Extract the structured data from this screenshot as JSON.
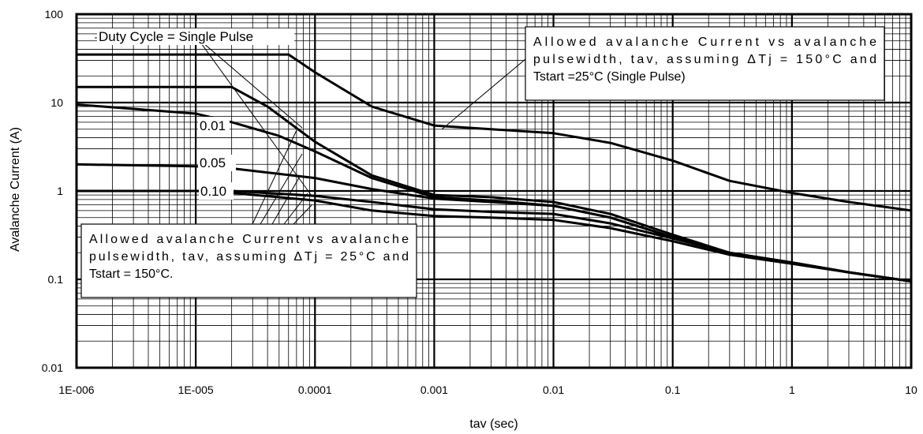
{
  "chart_data": {
    "type": "line",
    "title": "",
    "xlabel": "tav (sec)",
    "ylabel": "Avalanche Current (A)",
    "xscale": "log",
    "yscale": "log",
    "xlim": [
      1e-06,
      10
    ],
    "ylim": [
      0.01,
      100
    ],
    "grid": true,
    "x_ticks": [
      {
        "value": 1e-06,
        "label": "1E-006"
      },
      {
        "value": 1e-05,
        "label": "1E-005"
      },
      {
        "value": 0.0001,
        "label": "0.0001"
      },
      {
        "value": 0.001,
        "label": "0.001"
      },
      {
        "value": 0.01,
        "label": "0.01"
      },
      {
        "value": 0.1,
        "label": "0.1"
      },
      {
        "value": 1,
        "label": "1"
      },
      {
        "value": 10,
        "label": "10"
      }
    ],
    "y_ticks": [
      {
        "value": 0.01,
        "label": "0.01"
      },
      {
        "value": 0.1,
        "label": "0.1"
      },
      {
        "value": 1,
        "label": "1"
      },
      {
        "value": 10,
        "label": "10"
      },
      {
        "value": 100,
        "label": "100"
      }
    ],
    "series": [
      {
        "x": [
          1e-06,
          2e-05,
          6e-05,
          0.0001,
          0.0003,
          0.001,
          0.003,
          0.01,
          0.03,
          0.1,
          0.3,
          1,
          3,
          10
        ],
        "y": [
          35,
          35,
          35,
          22,
          9,
          5.5,
          5,
          4.5,
          3.5,
          2.2,
          1.3,
          0.95,
          0.75,
          0.6
        ]
      },
      {
        "x": [
          1e-06,
          2e-05,
          4e-05,
          0.0001,
          0.0003,
          0.001,
          0.003,
          0.01,
          0.03,
          0.1,
          0.3,
          1,
          3,
          10
        ],
        "y": [
          15,
          15,
          9,
          3.6,
          1.5,
          0.9,
          0.85,
          0.75,
          0.55,
          0.32,
          0.2,
          0.155,
          0.12,
          0.095
        ]
      },
      {
        "x": [
          1e-06,
          1e-05,
          2e-05,
          5e-05,
          0.0001,
          0.0003,
          0.001,
          0.003,
          0.01,
          0.03,
          0.1,
          0.3,
          1,
          3,
          10
        ],
        "y": [
          9.5,
          7.5,
          6,
          4.2,
          2.8,
          1.4,
          0.85,
          0.78,
          0.68,
          0.5,
          0.3,
          0.2,
          0.155,
          0.12,
          0.095
        ]
      },
      {
        "x": [
          1e-06,
          1e-05,
          2e-05,
          0.0001,
          0.0003,
          0.001,
          0.003,
          0.01,
          0.03,
          0.1,
          0.3,
          1,
          3,
          10
        ],
        "y": [
          2,
          1.9,
          1.8,
          1.4,
          1.05,
          0.82,
          0.75,
          0.68,
          0.5,
          0.3,
          0.2,
          0.155,
          0.12,
          0.095
        ]
      },
      {
        "x": [
          1e-06,
          1e-05,
          2e-05,
          0.0001,
          0.0003,
          0.001,
          0.003,
          0.01,
          0.03,
          0.1,
          0.3,
          1,
          3,
          10
        ],
        "y": [
          1,
          1,
          0.95,
          0.78,
          0.6,
          0.52,
          0.5,
          0.47,
          0.38,
          0.27,
          0.19,
          0.15,
          0.12,
          0.095
        ]
      },
      {
        "x": [
          1e-06,
          2e-05,
          0.0001,
          0.0003,
          0.001,
          0.003,
          0.01,
          0.03,
          0.1,
          0.3,
          1,
          3,
          10
        ],
        "y": [
          1,
          1,
          0.88,
          0.75,
          0.62,
          0.58,
          0.55,
          0.43,
          0.29,
          0.2,
          0.155,
          0.12,
          0.095
        ]
      }
    ],
    "annotations": [
      {
        "text": "Duty Cycle = Single Pulse"
      },
      {
        "text": "0.01"
      },
      {
        "text": "0.05"
      },
      {
        "text": "0.10"
      },
      {
        "lines": [
          "Allowed avalanche Current vs avalanche",
          "pulsewidth, tav, assuming ΔTj = 150°C and",
          "Tstart =25°C (Single Pulse)"
        ]
      },
      {
        "lines": [
          "Allowed avalanche Current vs avalanche",
          "pulsewidth, tav, assuming ΔTj = 25°C and",
          "Tstart = 150°C."
        ]
      }
    ]
  }
}
